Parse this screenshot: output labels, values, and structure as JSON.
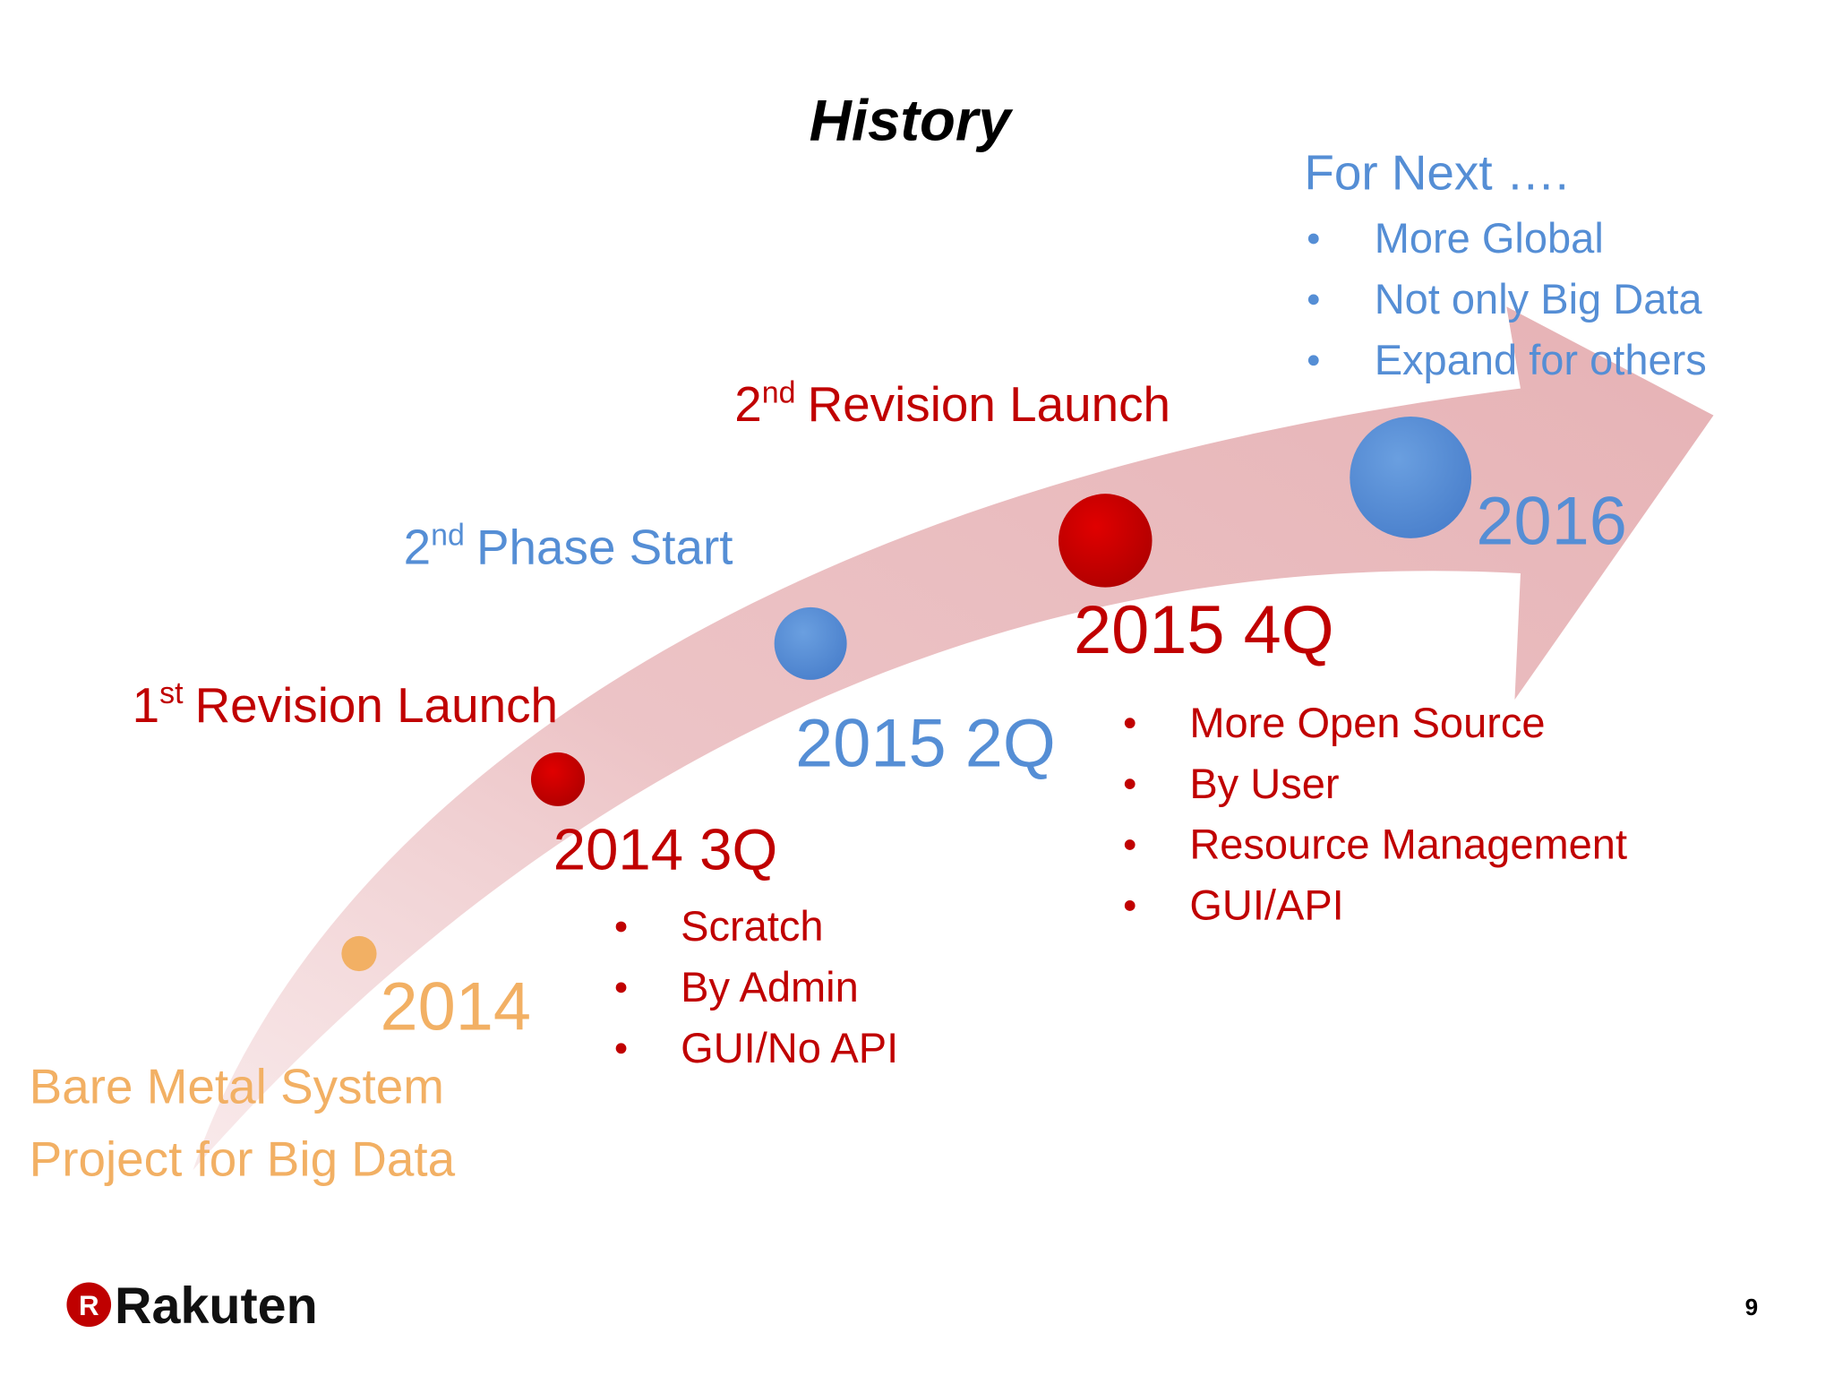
{
  "title": "History",
  "milestones": [
    {
      "date": "2014",
      "description": [
        "Bare Metal System",
        "Project for Big Data"
      ]
    },
    {
      "date": "2014 3Q",
      "event": {
        "number": "1",
        "suffix": "st",
        "text": "Revision Launch"
      },
      "bullets": [
        "Scratch",
        "By Admin",
        "GUI/No API"
      ]
    },
    {
      "date": "2015 2Q",
      "event": {
        "number": "2",
        "suffix": "nd",
        "text": "Phase Start"
      }
    },
    {
      "date": "2015 4Q",
      "event": {
        "number": "2",
        "suffix": "nd",
        "text": "Revision Launch"
      },
      "bullets": [
        "More Open Source",
        "By User",
        "Resource Management",
        "GUI/API"
      ]
    },
    {
      "date": "2016",
      "heading": "For Next ….",
      "bullets": [
        "More Global",
        "Not only Big Data",
        "Expand for others"
      ]
    }
  ],
  "logo": {
    "mark": "R",
    "text": "Rakuten"
  },
  "page_number": "9"
}
